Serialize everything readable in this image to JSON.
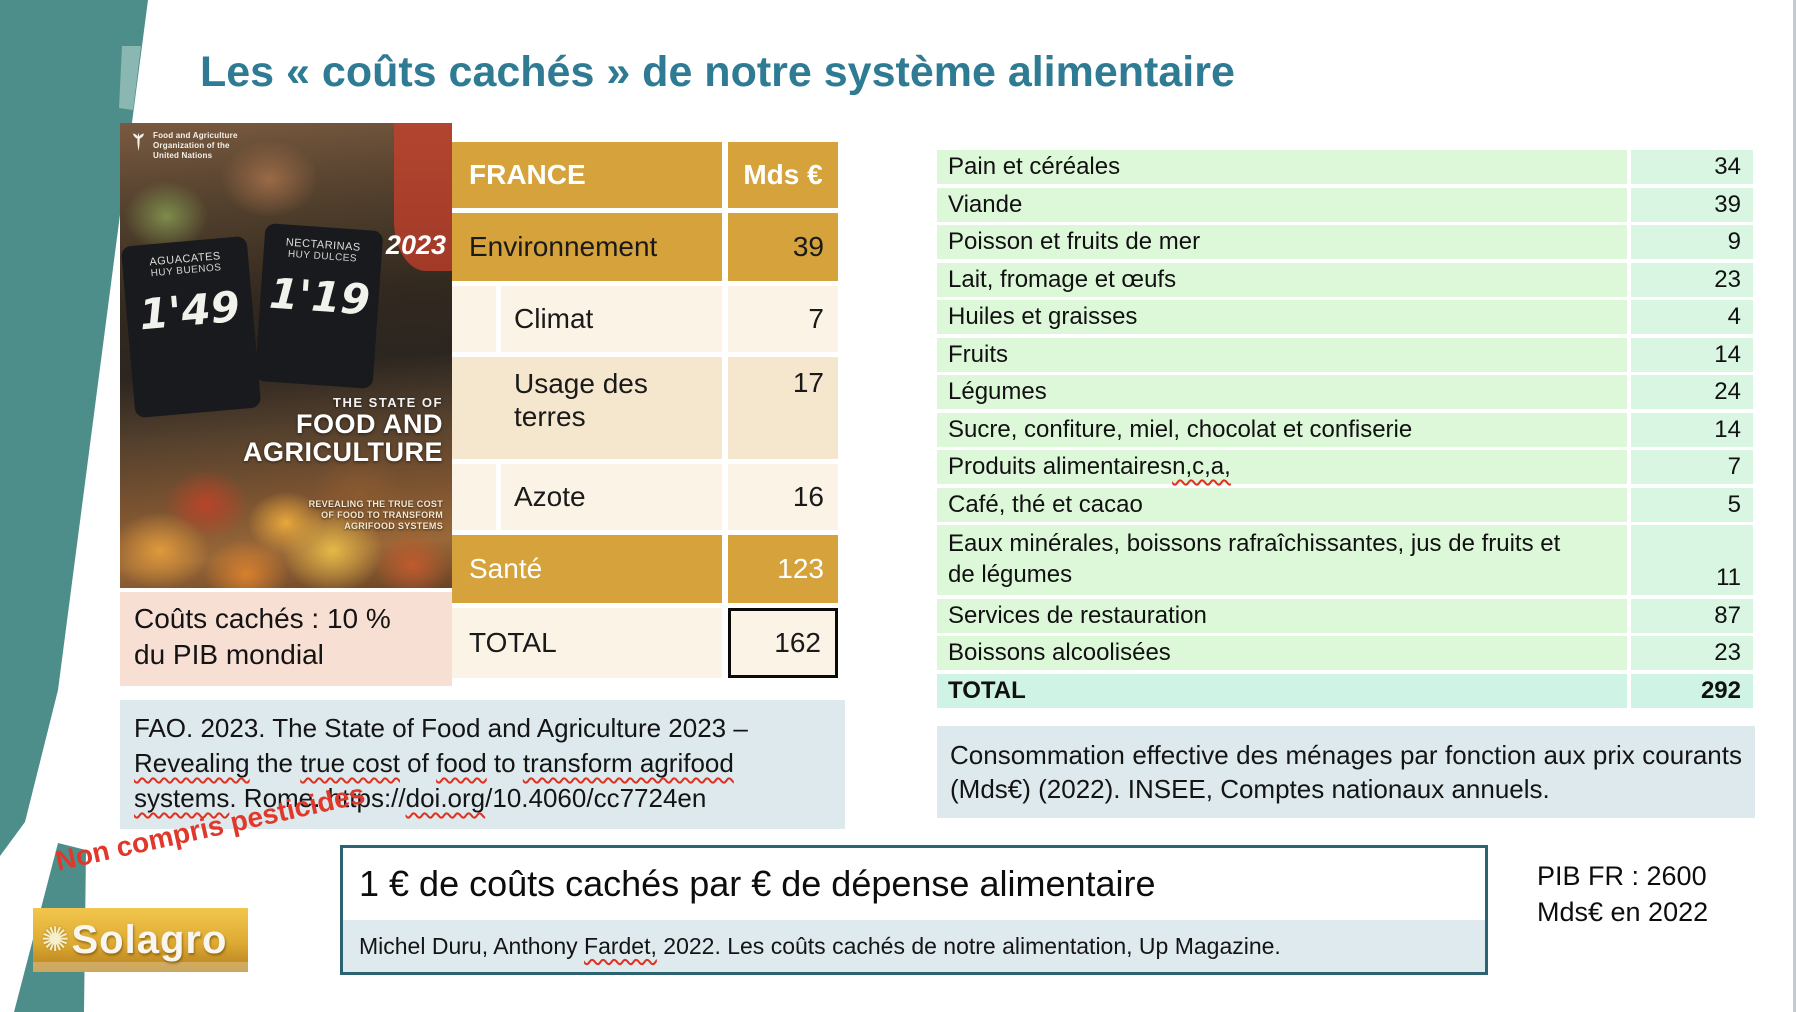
{
  "slide": {
    "title": "Les « coûts cachés » de notre système alimentaire"
  },
  "colors": {
    "title_teal": "#2e7b93",
    "ribbon_teal": "#4d8e8a",
    "table_gold": "#d5a23b",
    "cream_light": "#fbf3e6",
    "cream_dark": "#f5e7cd",
    "note_pink": "#f8dfd3",
    "caption_bluegray": "#dde9ed",
    "green_label": "#ddf8d9",
    "green_value": "#d8f6e2",
    "mint_total": "#cff3e5",
    "alert_red": "#e0392c",
    "box_border_teal": "#2b6372"
  },
  "fao_cover": {
    "org_lines": [
      "Food and Agriculture",
      "Organization of the",
      "United Nations"
    ],
    "year": "2023",
    "signs": [
      {
        "line1": "AGUACATES",
        "line2": "HUY BUENOS",
        "price": "1'49"
      },
      {
        "line1": "NECTARINAS",
        "line2": "HUY DULCES",
        "price": "1'19"
      }
    ],
    "title_top": "THE STATE OF",
    "title_line1": "FOOD AND",
    "title_line2": "AGRICULTURE",
    "subtitle_lines": [
      "REVEALING THE TRUE COST",
      "OF FOOD TO TRANSFORM",
      "AGRIFOOD SYSTEMS"
    ]
  },
  "france_table": {
    "header": {
      "label": "FRANCE",
      "value": "Mds €"
    },
    "rows": [
      {
        "label": "Environnement",
        "value": "39",
        "kind": "cat-gold"
      },
      {
        "label": "Climat",
        "value": "7",
        "kind": "sub"
      },
      {
        "label": "Usage des terres",
        "value": "17",
        "kind": "sub tall"
      },
      {
        "label": "Azote",
        "value": "16",
        "kind": "sub"
      },
      {
        "label": "Santé",
        "value": "123",
        "kind": "cat-gold white"
      },
      {
        "label": "TOTAL",
        "value": "162",
        "kind": "total"
      }
    ]
  },
  "pib_mondial_note": {
    "line1": "Coûts cachés : 10 %",
    "line2": "du PIB mondial"
  },
  "fao_citation": {
    "parts": [
      {
        "t": "FAO. 2023. The State of Food and Agriculture 2023 – ",
        "sq": false
      },
      {
        "t": "Revealing",
        "sq": true
      },
      {
        "t": " the ",
        "sq": false
      },
      {
        "t": "true cost",
        "sq": true
      },
      {
        "t": " of ",
        "sq": false
      },
      {
        "t": "food",
        "sq": true
      },
      {
        "t": " to ",
        "sq": false
      },
      {
        "t": "transform agrifood",
        "sq": true
      },
      {
        "t": " ",
        "sq": false
      },
      {
        "t": "systems",
        "sq": true
      },
      {
        "t": ". Rome. https://",
        "sq": false
      },
      {
        "t": "doi.org",
        "sq": true
      },
      {
        "t": "/10.4060/cc7724en",
        "sq": false
      }
    ]
  },
  "consumption_table": {
    "rows": [
      {
        "label": "Pain et céréales",
        "value": "34"
      },
      {
        "label": "Viande",
        "value": "39"
      },
      {
        "label": "Poisson et fruits de mer",
        "value": "9"
      },
      {
        "label": "Lait, fromage et œufs",
        "value": "23"
      },
      {
        "label": "Huiles et graisses",
        "value": "4"
      },
      {
        "label": "Fruits",
        "value": "14"
      },
      {
        "label": "Légumes",
        "value": "24"
      },
      {
        "label": "Sucre, confiture, miel, chocolat et confiserie",
        "value": "14"
      },
      {
        "label_parts": [
          {
            "t": "Produits alimentaires ",
            "sq": false
          },
          {
            "t": "n,c,a,",
            "sq": true
          }
        ],
        "value": "7"
      },
      {
        "label": "Café, thé et cacao",
        "value": "5"
      },
      {
        "label": "Eaux minérales, boissons rafraîchissantes, jus de fruits et de légumes",
        "value": "11",
        "kind": "double"
      },
      {
        "label": "Services de restauration",
        "value": "87"
      },
      {
        "label": "Boissons alcoolisées",
        "value": "23"
      },
      {
        "label": "TOTAL",
        "value": "292",
        "kind": "total"
      }
    ]
  },
  "consumption_caption": "Consommation effective des ménages par fonction aux prix courants (Mds€) (2022). INSEE, Comptes nationaux annuels.",
  "pesticides_note": "Non compris pesticides",
  "conclusion_box": {
    "headline": "1 € de coûts cachés par € de dépense alimentaire",
    "citation_parts": [
      {
        "t": "Michel Duru, Anthony ",
        "sq": false
      },
      {
        "t": "Fardet,",
        "sq": true
      },
      {
        "t": " 2022. Les coûts cachés de notre alimentation, Up Magazine.",
        "sq": false
      }
    ]
  },
  "pib_fr_note": {
    "line1": "PIB FR : 2600",
    "line2": "Mds€ en 2022"
  },
  "logo": {
    "text": "Solagro",
    "sun_icon": "✺"
  }
}
